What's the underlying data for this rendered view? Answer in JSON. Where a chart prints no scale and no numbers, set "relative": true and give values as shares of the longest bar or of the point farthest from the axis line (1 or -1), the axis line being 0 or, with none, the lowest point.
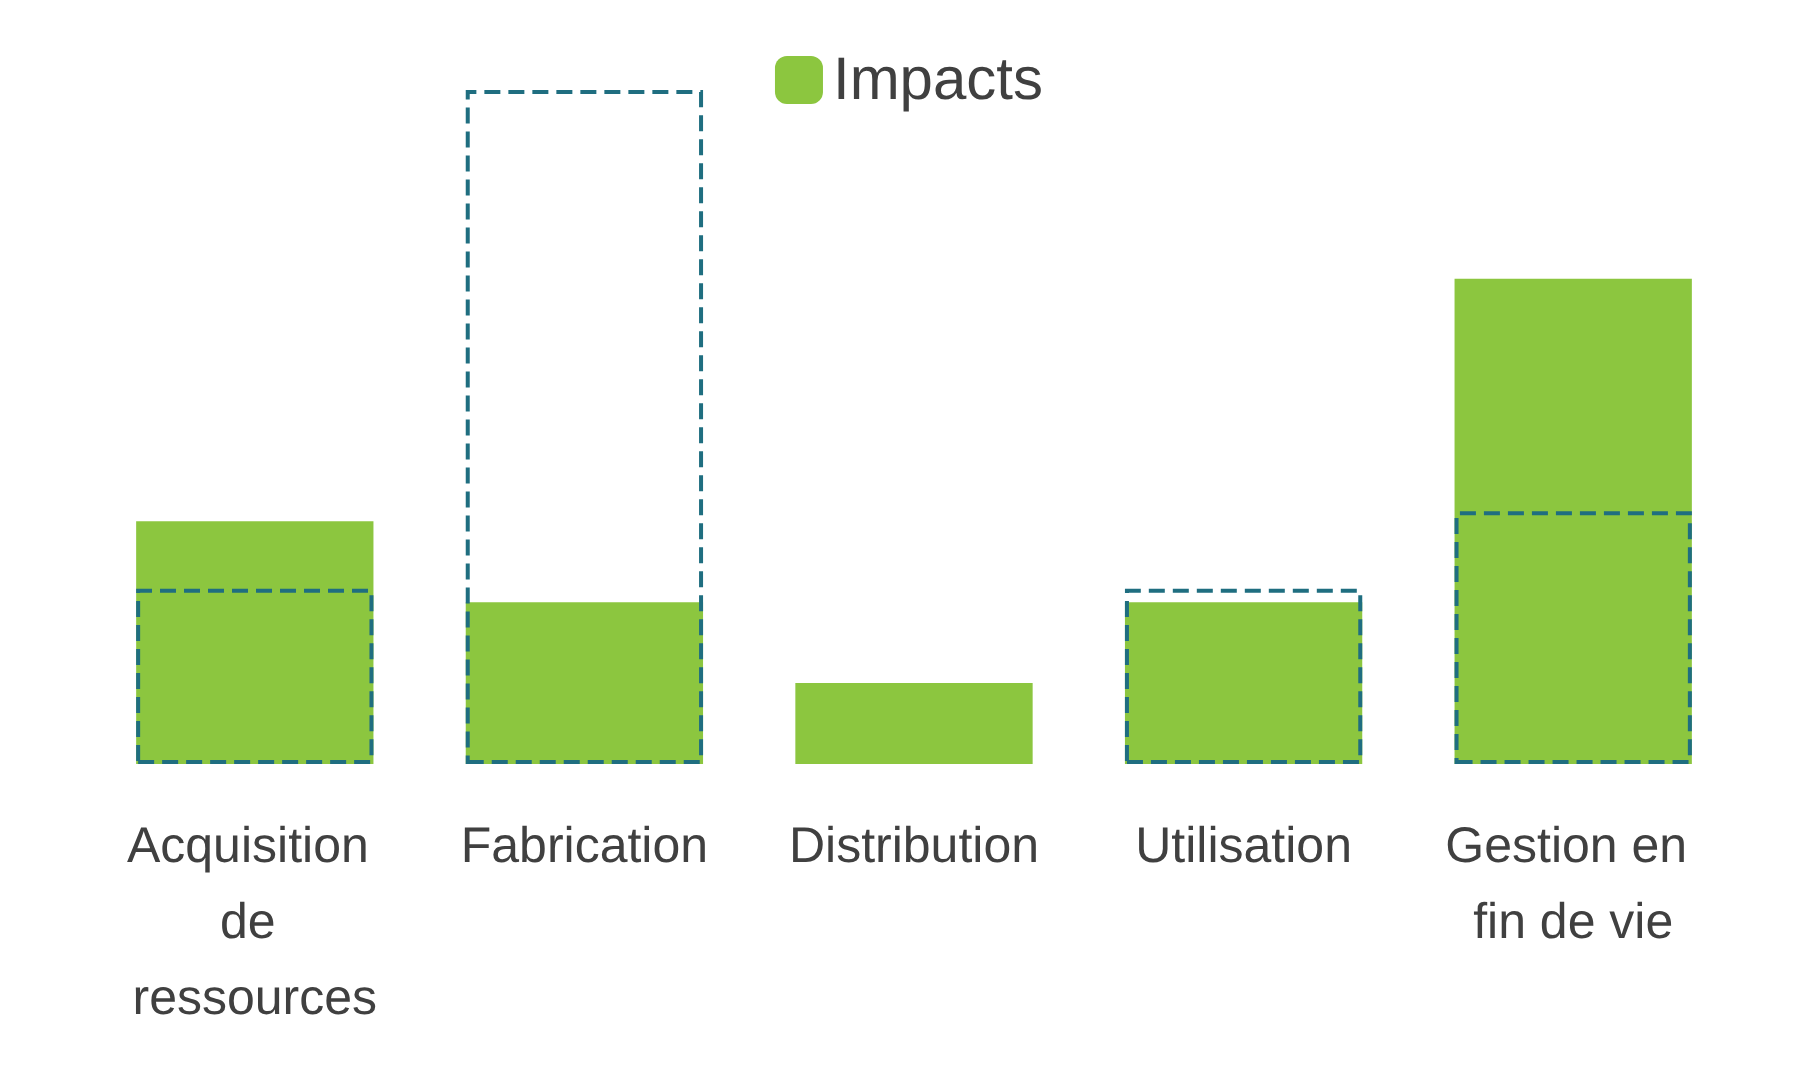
{
  "chart_data": {
    "type": "bar",
    "relative": true,
    "legend": "top",
    "categories": [
      "Acquisition de ressources",
      "Fabrication",
      "Distribution",
      "Utilisation",
      "Gestion en fin de vie"
    ],
    "series": [
      {
        "name": "Impacts",
        "color": "#8cc63f",
        "values": [
          0.36,
          0.24,
          0.12,
          0.24,
          0.72
        ]
      },
      {
        "color": "#1f6e80",
        "line_style": "dashed",
        "values": [
          0.26,
          1,
          null,
          0.26,
          0.375
        ]
      }
    ]
  }
}
